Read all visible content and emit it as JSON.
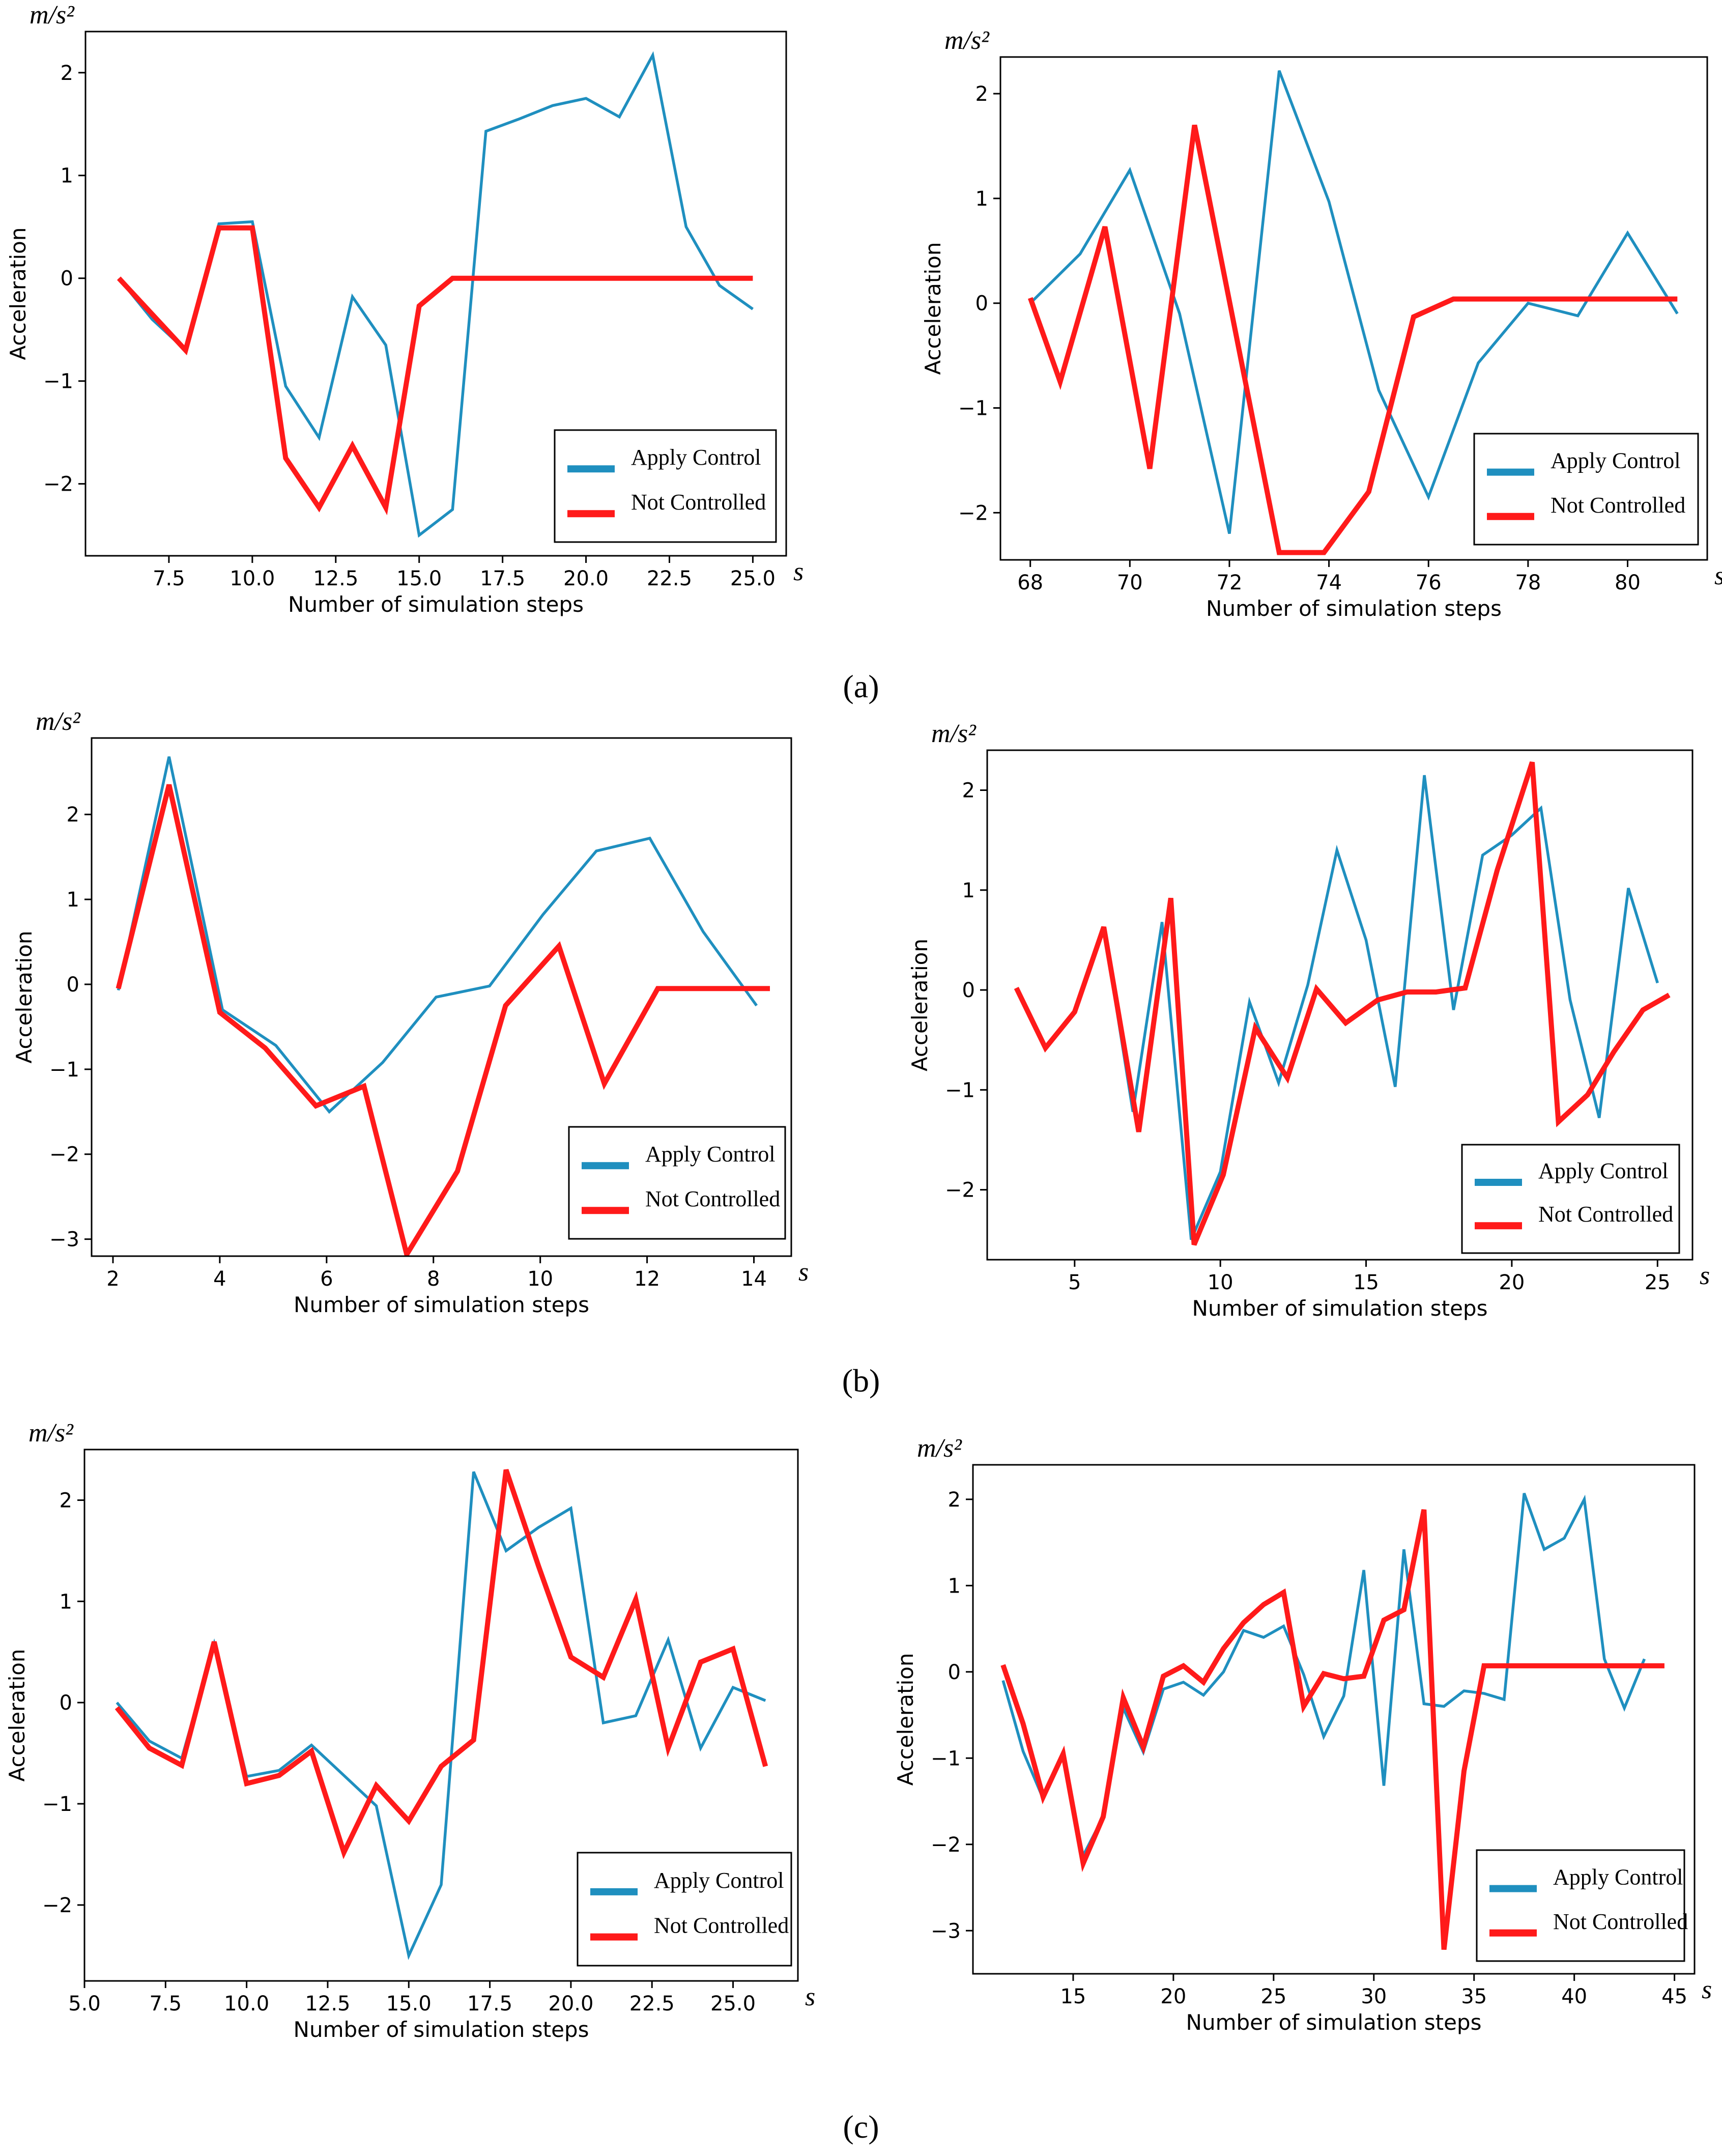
{
  "colors": {
    "apply": "#1f8fbf",
    "not_controlled": "#ff1a1a",
    "axis": "#000000"
  },
  "panel_labels": [
    "(a)",
    "(b)",
    "(c)"
  ],
  "chart_data": [
    {
      "type": "line",
      "panel": "(a)",
      "position": "left",
      "unit_label": "m/s²",
      "s_label": "s",
      "xlabel": "Number of simulation steps",
      "ylabel": "Acceleration",
      "xlim": [
        5,
        26
      ],
      "ylim": [
        -2.7,
        2.4
      ],
      "xticks": [
        7.5,
        10.0,
        12.5,
        15.0,
        17.5,
        20.0,
        22.5,
        25.0
      ],
      "xtick_labels": [
        "7.5",
        "10.0",
        "12.5",
        "15.0",
        "17.5",
        "20.0",
        "22.5",
        "25.0"
      ],
      "yticks": [
        -2,
        -1,
        0,
        1,
        2
      ],
      "ytick_labels": [
        "−2",
        "−1",
        "0",
        "1",
        "2"
      ],
      "legend": {
        "placement": "lower-right",
        "entries": [
          "Apply  Control",
          "Not Controlled"
        ]
      },
      "series": [
        {
          "name": "Apply  Control",
          "color": "#1f8fbf",
          "x": [
            6,
            7,
            8,
            9,
            10,
            11,
            12,
            13,
            14,
            15,
            16,
            17,
            18,
            19,
            20,
            21,
            22,
            23,
            24,
            25
          ],
          "y": [
            0,
            -0.4,
            -0.7,
            0.53,
            0.55,
            -1.05,
            -1.55,
            -0.18,
            -0.65,
            -2.5,
            -2.25,
            1.43,
            1.55,
            1.68,
            1.75,
            1.57,
            2.17,
            0.5,
            -0.07,
            -0.3
          ]
        },
        {
          "name": "Not Controlled",
          "color": "#ff1a1a",
          "x": [
            6,
            7,
            8,
            9,
            10,
            11,
            12,
            13,
            14,
            15,
            16,
            17,
            18,
            19,
            20,
            21,
            22,
            23,
            24,
            25
          ],
          "y": [
            0,
            -0.35,
            -0.7,
            0.49,
            0.49,
            -1.75,
            -2.23,
            -1.63,
            -2.23,
            -0.27,
            0,
            0,
            0,
            0,
            0,
            0,
            0,
            0,
            0,
            0
          ]
        }
      ]
    },
    {
      "type": "line",
      "panel": "(a)",
      "position": "right",
      "unit_label": "m/s²",
      "s_label": "s",
      "xlabel": "Number of simulation steps",
      "ylabel": "Acceleration",
      "xlim": [
        67.4,
        81.6
      ],
      "ylim": [
        -2.45,
        2.35
      ],
      "xticks": [
        68,
        70,
        72,
        74,
        76,
        78,
        80
      ],
      "xtick_labels": [
        "68",
        "70",
        "72",
        "74",
        "76",
        "78",
        "80"
      ],
      "yticks": [
        -2,
        -1,
        0,
        1,
        2
      ],
      "ytick_labels": [
        "−2",
        "−1",
        "0",
        "1",
        "2"
      ],
      "legend": {
        "placement": "lower-right",
        "entries": [
          "Apply  Control",
          "Not Controlled"
        ]
      },
      "series": [
        {
          "name": "Apply  Control",
          "color": "#1f8fbf",
          "x": [
            68,
            69,
            70,
            71,
            72,
            73,
            74,
            75,
            76,
            77,
            78,
            79,
            80,
            81
          ],
          "y": [
            0,
            0.47,
            1.27,
            -0.1,
            -2.2,
            2.22,
            0.97,
            -0.83,
            -1.85,
            -0.57,
            0,
            -0.12,
            0.67,
            -0.1
          ]
        },
        {
          "name": "Not Controlled",
          "color": "#ff1a1a",
          "x": [
            68,
            68.6,
            69.5,
            70.4,
            71.3,
            73.0,
            73.9,
            74.8,
            75.7,
            76.5,
            77.5,
            79,
            81
          ],
          "y": [
            0.05,
            -0.75,
            0.73,
            -1.58,
            1.7,
            -2.38,
            -2.38,
            -1.8,
            -0.13,
            0.04,
            0.04,
            0.04,
            0.04
          ]
        }
      ]
    },
    {
      "type": "line",
      "panel": "(b)",
      "position": "left",
      "unit_label": "m/s²",
      "s_label": "s",
      "xlabel": "Number of simulation steps",
      "ylabel": "Acceleration",
      "xlim": [
        1.6,
        14.7
      ],
      "ylim": [
        -3.2,
        2.9
      ],
      "xticks": [
        2,
        4,
        6,
        8,
        10,
        12,
        14
      ],
      "xtick_labels": [
        "2",
        "4",
        "6",
        "8",
        "10",
        "12",
        "14"
      ],
      "yticks": [
        -3,
        -2,
        -1,
        0,
        1,
        2
      ],
      "ytick_labels": [
        "−3",
        "−2",
        "−1",
        "0",
        "1",
        "2"
      ],
      "legend": {
        "placement": "lower-right",
        "entries": [
          "Apply  Control",
          "Not Controlled"
        ]
      },
      "series": [
        {
          "name": "Apply  Control",
          "color": "#1f8fbf",
          "x": [
            2.1,
            3.05,
            4.05,
            5.05,
            6.05,
            7.05,
            8.05,
            9.05,
            10.05,
            11.05,
            12.05,
            13.05,
            14.05
          ],
          "y": [
            -0.07,
            2.68,
            -0.3,
            -0.72,
            -1.5,
            -0.92,
            -0.15,
            -0.02,
            0.82,
            1.57,
            1.72,
            0.62,
            -0.25
          ]
        },
        {
          "name": "Not Controlled",
          "color": "#ff1a1a",
          "x": [
            2.1,
            3.05,
            4.0,
            4.85,
            5.8,
            6.7,
            7.5,
            8.45,
            9.35,
            10.35,
            11.2,
            12.2,
            13.05,
            14.3
          ],
          "y": [
            -0.05,
            2.35,
            -0.33,
            -0.75,
            -1.43,
            -1.2,
            -3.18,
            -2.2,
            -0.25,
            0.45,
            -1.17,
            -0.05,
            -0.05,
            -0.05
          ]
        }
      ]
    },
    {
      "type": "line",
      "panel": "(b)",
      "position": "right",
      "unit_label": "m/s²",
      "s_label": "s",
      "xlabel": "Number of simulation steps",
      "ylabel": "Acceleration",
      "xlim": [
        2,
        26.2
      ],
      "ylim": [
        -2.7,
        2.4
      ],
      "xticks": [
        5,
        10,
        15,
        20,
        25
      ],
      "xtick_labels": [
        "5",
        "10",
        "15",
        "20",
        "25"
      ],
      "yticks": [
        -2,
        -1,
        0,
        1,
        2
      ],
      "ytick_labels": [
        "−2",
        "−1",
        "0",
        "1",
        "2"
      ],
      "legend": {
        "placement": "lower-right",
        "entries": [
          "Apply  Control",
          "Not Controlled"
        ]
      },
      "series": [
        {
          "name": "Apply  Control",
          "color": "#1f8fbf",
          "x": [
            3,
            4,
            5,
            6,
            7,
            8,
            9,
            10,
            11,
            12,
            13,
            14,
            15,
            16,
            17,
            18,
            19,
            20,
            21,
            22,
            23,
            24,
            25
          ],
          "y": [
            0.02,
            -0.57,
            -0.22,
            0.62,
            -1.22,
            0.68,
            -2.5,
            -1.82,
            -0.12,
            -0.93,
            0.05,
            1.4,
            0.5,
            -0.97,
            2.15,
            -0.2,
            1.35,
            1.55,
            1.82,
            -0.1,
            -1.28,
            1.02,
            0.07
          ]
        },
        {
          "name": "Not Controlled",
          "color": "#ff1a1a",
          "x": [
            3,
            4,
            5,
            6,
            7.2,
            8.3,
            9.1,
            10.1,
            11.2,
            12.3,
            13.3,
            14.3,
            15.4,
            16.4,
            17.4,
            18.4,
            19.5,
            20.7,
            21.6,
            22.6,
            23.5,
            24.5,
            25.4
          ],
          "y": [
            0.02,
            -0.58,
            -0.22,
            0.63,
            -1.42,
            0.92,
            -2.55,
            -1.85,
            -0.38,
            -0.88,
            0.01,
            -0.33,
            -0.1,
            -0.02,
            -0.02,
            0.02,
            1.2,
            2.28,
            -1.32,
            -1.05,
            -0.62,
            -0.2,
            -0.05
          ]
        }
      ]
    },
    {
      "type": "line",
      "panel": "(c)",
      "position": "left",
      "unit_label": "m/s²",
      "s_label": "s",
      "xlabel": "Number of simulation steps",
      "ylabel": "Acceleration",
      "xlim": [
        5.0,
        27.0
      ],
      "ylim": [
        -2.75,
        2.5
      ],
      "xticks": [
        5.0,
        7.5,
        10.0,
        12.5,
        15.0,
        17.5,
        20.0,
        22.5,
        25.0
      ],
      "xtick_labels": [
        "5.0",
        "7.5",
        "10.0",
        "12.5",
        "15.0",
        "17.5",
        "20.0",
        "22.5",
        "25.0"
      ],
      "yticks": [
        -2,
        -1,
        0,
        1,
        2
      ],
      "ytick_labels": [
        "−2",
        "−1",
        "0",
        "1",
        "2"
      ],
      "legend": {
        "placement": "lower-right",
        "entries": [
          "Apply  Control",
          "Not Controlled"
        ]
      },
      "series": [
        {
          "name": "Apply  Control",
          "color": "#1f8fbf",
          "x": [
            6,
            7,
            8,
            9,
            10,
            11,
            12,
            13,
            14,
            15,
            16,
            17,
            18,
            19,
            20,
            21,
            22,
            23,
            24,
            25,
            26
          ],
          "y": [
            0,
            -0.38,
            -0.55,
            0.58,
            -0.73,
            -0.67,
            -0.42,
            -0.72,
            -1.02,
            -2.5,
            -1.8,
            2.28,
            1.5,
            1.73,
            1.92,
            -0.2,
            -0.13,
            0.62,
            -0.45,
            0.15,
            0.02
          ]
        },
        {
          "name": "Not Controlled",
          "color": "#ff1a1a",
          "x": [
            6,
            7,
            8,
            9,
            10,
            11,
            12,
            13,
            14,
            15,
            16,
            17,
            18,
            19,
            20,
            21,
            22,
            23,
            24,
            25,
            26
          ],
          "y": [
            -0.05,
            -0.45,
            -0.62,
            0.6,
            -0.8,
            -0.72,
            -0.48,
            -1.48,
            -0.82,
            -1.17,
            -0.63,
            -0.37,
            2.3,
            1.35,
            0.45,
            0.25,
            1.02,
            -0.45,
            0.4,
            0.53,
            -0.63
          ]
        }
      ]
    },
    {
      "type": "line",
      "panel": "(c)",
      "position": "right",
      "unit_label": "m/s²",
      "s_label": "s",
      "xlabel": "Number of simulation steps",
      "ylabel": "Acceleration",
      "xlim": [
        10,
        46
      ],
      "ylim": [
        -3.5,
        2.4
      ],
      "xticks": [
        15,
        20,
        25,
        30,
        35,
        40,
        45
      ],
      "xtick_labels": [
        "15",
        "20",
        "25",
        "30",
        "35",
        "40",
        "45"
      ],
      "yticks": [
        -3,
        -2,
        -1,
        0,
        1,
        2
      ],
      "ytick_labels": [
        "−3",
        "−2",
        "−1",
        "0",
        "1",
        "2"
      ],
      "legend": {
        "placement": "lower-right",
        "entries": [
          "Apply  Control",
          "Not Controlled"
        ]
      },
      "series": [
        {
          "name": "Apply  Control",
          "color": "#1f8fbf",
          "x": [
            11.5,
            12.5,
            13.5,
            14.5,
            15.5,
            16.5,
            17.5,
            18.5,
            19.5,
            20.5,
            21.5,
            22.5,
            23.5,
            24.5,
            25.5,
            26.5,
            27.5,
            28.5,
            29.5,
            30.5,
            31.5,
            32.5,
            33.5,
            34.5,
            35.5,
            36.5,
            37.5,
            38.5,
            39.5,
            40.5,
            41.5,
            42.5,
            43.5
          ],
          "y": [
            -0.1,
            -0.92,
            -1.47,
            -0.97,
            -2.13,
            -1.68,
            -0.42,
            -0.93,
            -0.2,
            -0.12,
            -0.27,
            0,
            0.48,
            0.4,
            0.53,
            -0.03,
            -0.75,
            -0.28,
            1.18,
            -1.32,
            1.42,
            -0.37,
            -0.4,
            -0.22,
            -0.25,
            -0.32,
            2.07,
            1.42,
            1.55,
            2.0,
            0.15,
            -0.42,
            0.15
          ]
        },
        {
          "name": "Not Controlled",
          "color": "#ff1a1a",
          "x": [
            11.5,
            12.5,
            13.5,
            14.5,
            15.5,
            16.5,
            17.5,
            18.5,
            19.5,
            20.5,
            21.5,
            22.5,
            23.5,
            24.5,
            25.5,
            26.5,
            27.5,
            28.5,
            29.5,
            30.5,
            31.5,
            32.5,
            33.5,
            34.5,
            35.5,
            37,
            39,
            41,
            43,
            44.5
          ],
          "y": [
            0.08,
            -0.6,
            -1.45,
            -0.95,
            -2.22,
            -1.68,
            -0.3,
            -0.87,
            -0.05,
            0.07,
            -0.12,
            0.27,
            0.57,
            0.78,
            0.92,
            -0.4,
            -0.02,
            -0.08,
            -0.05,
            0.6,
            0.72,
            1.88,
            -3.22,
            -1.15,
            0.07,
            0.07,
            0.07,
            0.07,
            0.07,
            0.07
          ]
        }
      ]
    }
  ]
}
